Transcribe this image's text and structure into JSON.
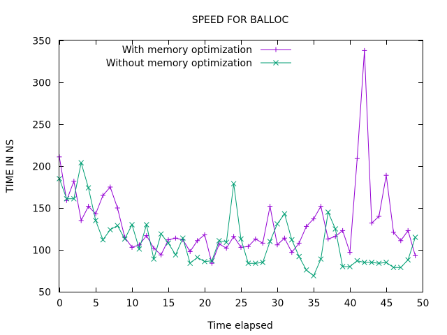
{
  "chart_data": {
    "type": "line",
    "title": "SPEED FOR BALLOC",
    "xlabel": "Time elapsed",
    "ylabel": "TIME IN NS",
    "xlim": [
      0,
      50
    ],
    "ylim": [
      50,
      350
    ],
    "x_ticks": [
      "0",
      "5",
      "10",
      "15",
      "20",
      "25",
      "30",
      "35",
      "40",
      "45",
      "50"
    ],
    "y_ticks": [
      "50",
      "100",
      "150",
      "200",
      "250",
      "300",
      "350"
    ],
    "grid": false,
    "legend_position": "top-center",
    "series": [
      {
        "name": "With memory optimization",
        "color": "#9400d3",
        "marker": "plus",
        "x": [
          0,
          1,
          2,
          3,
          4,
          5,
          6,
          7,
          8,
          9,
          10,
          11,
          12,
          13,
          14,
          15,
          16,
          17,
          18,
          19,
          20,
          21,
          22,
          23,
          24,
          25,
          26,
          27,
          28,
          29,
          30,
          31,
          32,
          33,
          34,
          35,
          36,
          37,
          38,
          39,
          40,
          41,
          42,
          43,
          44,
          45,
          46,
          47,
          48,
          49
        ],
        "values": [
          211,
          159,
          182,
          135,
          152,
          143,
          165,
          175,
          150,
          115,
          103,
          106,
          117,
          102,
          94,
          112,
          114,
          112,
          98,
          111,
          118,
          84,
          107,
          102,
          116,
          103,
          104,
          113,
          108,
          152,
          106,
          114,
          97,
          108,
          128,
          137,
          152,
          113,
          116,
          123,
          97,
          209,
          338,
          132,
          140,
          189,
          121,
          111,
          123,
          93
        ]
      },
      {
        "name": "Without memory optimization",
        "color": "#009e73",
        "marker": "x",
        "x": [
          0,
          1,
          2,
          3,
          4,
          5,
          6,
          7,
          8,
          9,
          10,
          11,
          12,
          13,
          14,
          15,
          16,
          17,
          18,
          19,
          20,
          21,
          22,
          23,
          24,
          25,
          26,
          27,
          28,
          29,
          30,
          31,
          32,
          33,
          34,
          35,
          36,
          37,
          38,
          39,
          40,
          41,
          42,
          43,
          44,
          45,
          46,
          47,
          48,
          49
        ],
        "values": [
          185,
          161,
          161,
          204,
          174,
          135,
          112,
          124,
          129,
          113,
          130,
          101,
          130,
          89,
          119,
          108,
          94,
          114,
          84,
          91,
          86,
          87,
          111,
          109,
          179,
          113,
          84,
          84,
          85,
          110,
          131,
          143,
          112,
          92,
          76,
          69,
          89,
          145,
          125,
          80,
          80,
          87,
          85,
          85,
          84,
          85,
          79,
          79,
          88,
          115
        ]
      }
    ]
  }
}
